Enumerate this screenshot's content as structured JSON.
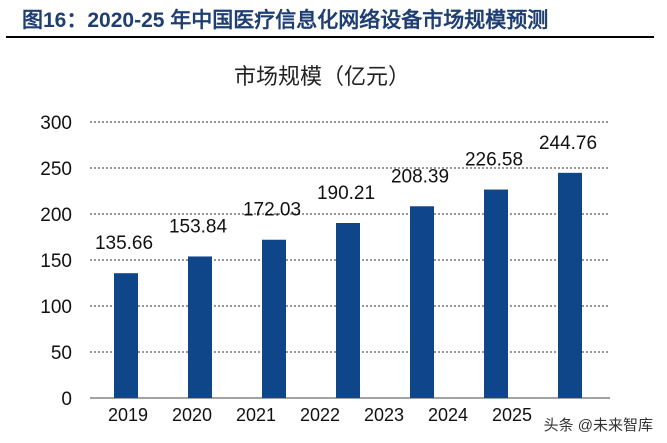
{
  "figure_title": "图16：2020-25 年中国医疗信息化网络设备市场规模预测",
  "watermark": "头条 @未来智库",
  "chart_data": {
    "type": "bar",
    "title": "市场规模（亿元）",
    "categories": [
      "2019",
      "2020",
      "2021",
      "2022",
      "2023",
      "2024",
      "2025"
    ],
    "values": [
      135.66,
      153.84,
      172.03,
      190.21,
      208.39,
      226.58,
      244.76
    ],
    "labels": [
      "135.66",
      "153.84",
      "172.03",
      "190.21",
      "208.39",
      "226.58",
      "244.76"
    ],
    "ylim": [
      0,
      300
    ],
    "yticks": [
      "0",
      "50",
      "100",
      "150",
      "200",
      "250",
      "300"
    ],
    "grid": true,
    "bar_color": "#0f4589"
  }
}
